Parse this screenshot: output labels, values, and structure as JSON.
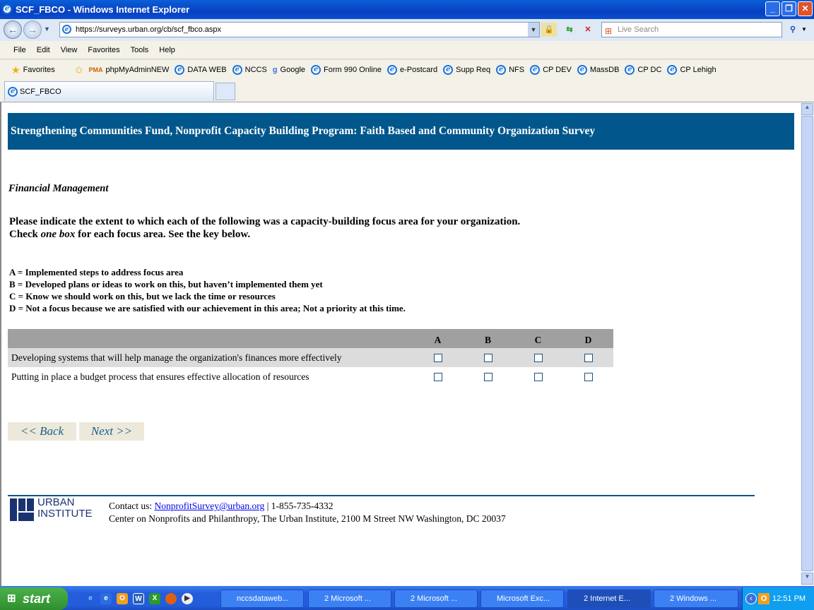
{
  "window": {
    "title": "SCF_FBCO - Windows Internet Explorer"
  },
  "address": {
    "url": "https://surveys.urban.org/cb/scf_fbco.aspx",
    "search_placeholder": "Live Search"
  },
  "menu": [
    "File",
    "Edit",
    "View",
    "Favorites",
    "Tools",
    "Help"
  ],
  "favorites": {
    "label": "Favorites",
    "items": [
      "phpMyAdminNEW",
      "DATA WEB",
      "NCCS",
      "Google",
      "Form 990 Online",
      "e-Postcard",
      "Supp Req",
      "NFS",
      "CP DEV",
      "MassDB",
      "CP DC",
      "CP Lehigh"
    ]
  },
  "tab": {
    "title": "SCF_FBCO"
  },
  "page": {
    "banner": "Strengthening Communities Fund, Nonprofit Capacity Building Program: Faith Based and Community Organization Survey",
    "section": "Financial Management",
    "question_line1": "Please indicate the extent to which each of the following was a capacity-building focus area for your organization.",
    "question_line2_pre": "Check ",
    "question_line2_em": "one box",
    "question_line2_post": " for each focus area. See the key below.",
    "key": [
      "A = Implemented steps to address focus area",
      "B = Developed plans or ideas to work on this, but haven’t implemented them yet",
      "C = Know we should work on this, but we lack the time or resources",
      "D = Not a focus because we are satisfied with our achievement in this area; Not a priority at this time."
    ],
    "columns": [
      "A",
      "B",
      "C",
      "D"
    ],
    "rows": [
      "Developing systems that will help manage the organization's finances more effectively",
      "Putting in place a budget process that ensures effective allocation of resources"
    ],
    "back": "<< Back",
    "next": "Next >>",
    "footer": {
      "logo_text": "URBAN INSTITUTE",
      "logo_line1": "URBAN",
      "logo_line2": "INSTITUTE",
      "contact_label": "Contact us: ",
      "email": "NonprofitSurvey@urban.org",
      "phone": " | 1-855-735-4332",
      "address": "Center on Nonprofits and Philanthropy, The Urban Institute, 2100 M Street NW Washington, DC 20037"
    }
  },
  "taskbar": {
    "start": "start",
    "items": [
      "nccsdataweb...",
      "2 Microsoft ...",
      "2 Microsoft ...",
      "Microsoft Exc...",
      "2 Internet E...",
      "2 Windows ..."
    ],
    "clock": "12:51 PM"
  },
  "colors": {
    "banner": "#01578c",
    "table_header": "#a0a0a0",
    "row_alt": "#dcdcdc",
    "nav_button": "#ece9db"
  }
}
